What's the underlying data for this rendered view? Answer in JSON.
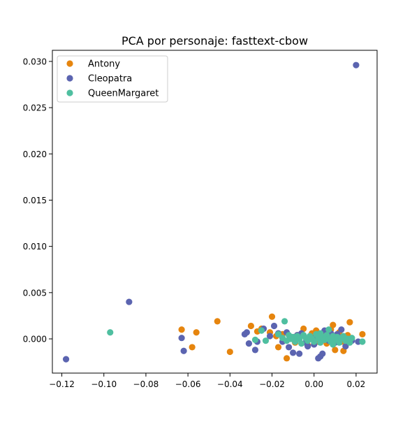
{
  "chart_data": {
    "type": "scatter",
    "title": "PCA por personaje: fasttext-cbow",
    "xlabel": "",
    "ylabel": "",
    "xlim": [
      -0.1245,
      0.03
    ],
    "ylim": [
      -0.0037,
      0.0312
    ],
    "xticks": [
      -0.12,
      -0.1,
      -0.08,
      -0.06,
      -0.04,
      -0.02,
      0.0,
      0.02
    ],
    "xtick_labels": [
      "−0.12",
      "−0.10",
      "−0.08",
      "−0.06",
      "−0.04",
      "−0.02",
      "0.00",
      "0.02"
    ],
    "yticks": [
      0.0,
      0.005,
      0.01,
      0.015,
      0.02,
      0.025,
      0.03
    ],
    "ytick_labels": [
      "0.000",
      "0.005",
      "0.010",
      "0.015",
      "0.020",
      "0.025",
      "0.030"
    ],
    "grid": false,
    "legend_position": "top-left",
    "series": [
      {
        "name": "Antony",
        "color": "#e6850e",
        "points": [
          [
            -0.063,
            0.001
          ],
          [
            -0.058,
            -0.0009
          ],
          [
            -0.056,
            0.0007
          ],
          [
            -0.046,
            0.0019
          ],
          [
            -0.04,
            -0.0014
          ],
          [
            -0.03,
            0.0014
          ],
          [
            -0.027,
            0.0008
          ],
          [
            -0.025,
            0.0011
          ],
          [
            -0.021,
            0.0007
          ],
          [
            -0.02,
            0.0024
          ],
          [
            -0.018,
            0.0003
          ],
          [
            -0.017,
            -0.0009
          ],
          [
            -0.015,
            0.0005
          ],
          [
            -0.013,
            -0.0021
          ],
          [
            -0.011,
            0.0001
          ],
          [
            -0.008,
            0.0004
          ],
          [
            -0.005,
            0.0011
          ],
          [
            -0.003,
            -0.0007
          ],
          [
            -0.001,
            0.0006
          ],
          [
            0.001,
            0.0009
          ],
          [
            0.004,
            0.0004
          ],
          [
            0.006,
            -0.0005
          ],
          [
            0.008,
            0.001
          ],
          [
            0.009,
            0.0015
          ],
          [
            0.01,
            -0.0012
          ],
          [
            0.012,
            0.0007
          ],
          [
            0.013,
            -0.0003
          ],
          [
            0.014,
            -0.0013
          ],
          [
            0.016,
            0.0004
          ],
          [
            0.017,
            0.0018
          ],
          [
            0.023,
            0.0005
          ],
          [
            -0.002,
            0.0002
          ],
          [
            0.002,
            -0.0003
          ],
          [
            0.011,
            0.0002
          ],
          [
            -0.009,
            -0.0004
          ]
        ]
      },
      {
        "name": "Cleopatra",
        "color": "#5b64b0",
        "points": [
          [
            0.02,
            0.0296
          ],
          [
            -0.118,
            -0.0022
          ],
          [
            -0.088,
            0.004
          ],
          [
            -0.063,
            0.0001
          ],
          [
            -0.062,
            -0.0013
          ],
          [
            -0.033,
            0.0005
          ],
          [
            -0.032,
            0.0007
          ],
          [
            -0.031,
            -0.0005
          ],
          [
            -0.028,
            -0.0012
          ],
          [
            -0.027,
            -0.0003
          ],
          [
            -0.024,
            0.0011
          ],
          [
            -0.021,
            0.0003
          ],
          [
            -0.019,
            0.0014
          ],
          [
            -0.017,
            0.0006
          ],
          [
            -0.015,
            -0.0003
          ],
          [
            -0.013,
            0.0007
          ],
          [
            -0.012,
            -0.0009
          ],
          [
            -0.01,
            -0.0015
          ],
          [
            -0.008,
            0.0004
          ],
          [
            -0.007,
            -0.0016
          ],
          [
            -0.006,
            0.0006
          ],
          [
            -0.004,
            -0.0004
          ],
          [
            -0.002,
            0.0002
          ],
          [
            0.0,
            -0.0006
          ],
          [
            0.001,
            0.0003
          ],
          [
            0.002,
            -0.0021
          ],
          [
            0.003,
            -0.0019
          ],
          [
            0.004,
            -0.0016
          ],
          [
            0.005,
            0.0009
          ],
          [
            0.007,
            -0.0002
          ],
          [
            0.008,
            0.0006
          ],
          [
            0.01,
            -0.0004
          ],
          [
            0.013,
            0.001
          ],
          [
            0.015,
            -0.0008
          ],
          [
            0.018,
            -0.0002
          ],
          [
            0.021,
            -0.0003
          ],
          [
            0.006,
            0.0001
          ],
          [
            -0.011,
            0.0002
          ],
          [
            0.011,
            0.0005
          ],
          [
            -0.003,
            -0.0008
          ]
        ]
      },
      {
        "name": "QueenMargaret",
        "color": "#4fbfa0",
        "points": [
          [
            -0.097,
            0.0007
          ],
          [
            -0.025,
            0.0009
          ],
          [
            -0.023,
            -0.0002
          ],
          [
            -0.028,
            -0.0001
          ],
          [
            -0.014,
            0.0019
          ],
          [
            -0.017,
            0.0005
          ],
          [
            -0.015,
            0.0001
          ],
          [
            -0.013,
            -0.0002
          ],
          [
            -0.012,
            0.0004
          ],
          [
            -0.01,
            0.0002
          ],
          [
            -0.009,
            -0.0003
          ],
          [
            -0.008,
            0.0003
          ],
          [
            -0.007,
            0.0
          ],
          [
            -0.006,
            -0.0005
          ],
          [
            -0.005,
            0.0004
          ],
          [
            -0.004,
            0.0001
          ],
          [
            -0.003,
            -0.0002
          ],
          [
            -0.002,
            0.0003
          ],
          [
            -0.001,
            0.0
          ],
          [
            0.0,
            -0.0003
          ],
          [
            0.001,
            0.0005
          ],
          [
            0.002,
            0.0001
          ],
          [
            0.003,
            -0.0004
          ],
          [
            0.004,
            0.0002
          ],
          [
            0.005,
            -0.0001
          ],
          [
            0.006,
            0.0004
          ],
          [
            0.007,
            0.0
          ],
          [
            0.008,
            -0.0003
          ],
          [
            0.009,
            0.0003
          ],
          [
            0.01,
            -0.0001
          ],
          [
            0.011,
            0.0002
          ],
          [
            0.012,
            -0.0004
          ],
          [
            0.013,
            0.0001
          ],
          [
            0.014,
            0.0003
          ],
          [
            0.015,
            -0.0002
          ],
          [
            0.016,
            0.0
          ],
          [
            0.017,
            -0.0004
          ],
          [
            0.018,
            0.0001
          ],
          [
            0.023,
            -0.0003
          ],
          [
            0.007,
            0.001
          ],
          [
            -0.011,
            0.0
          ],
          [
            0.003,
            0.0006
          ],
          [
            0.009,
            -0.0006
          ]
        ]
      }
    ]
  }
}
